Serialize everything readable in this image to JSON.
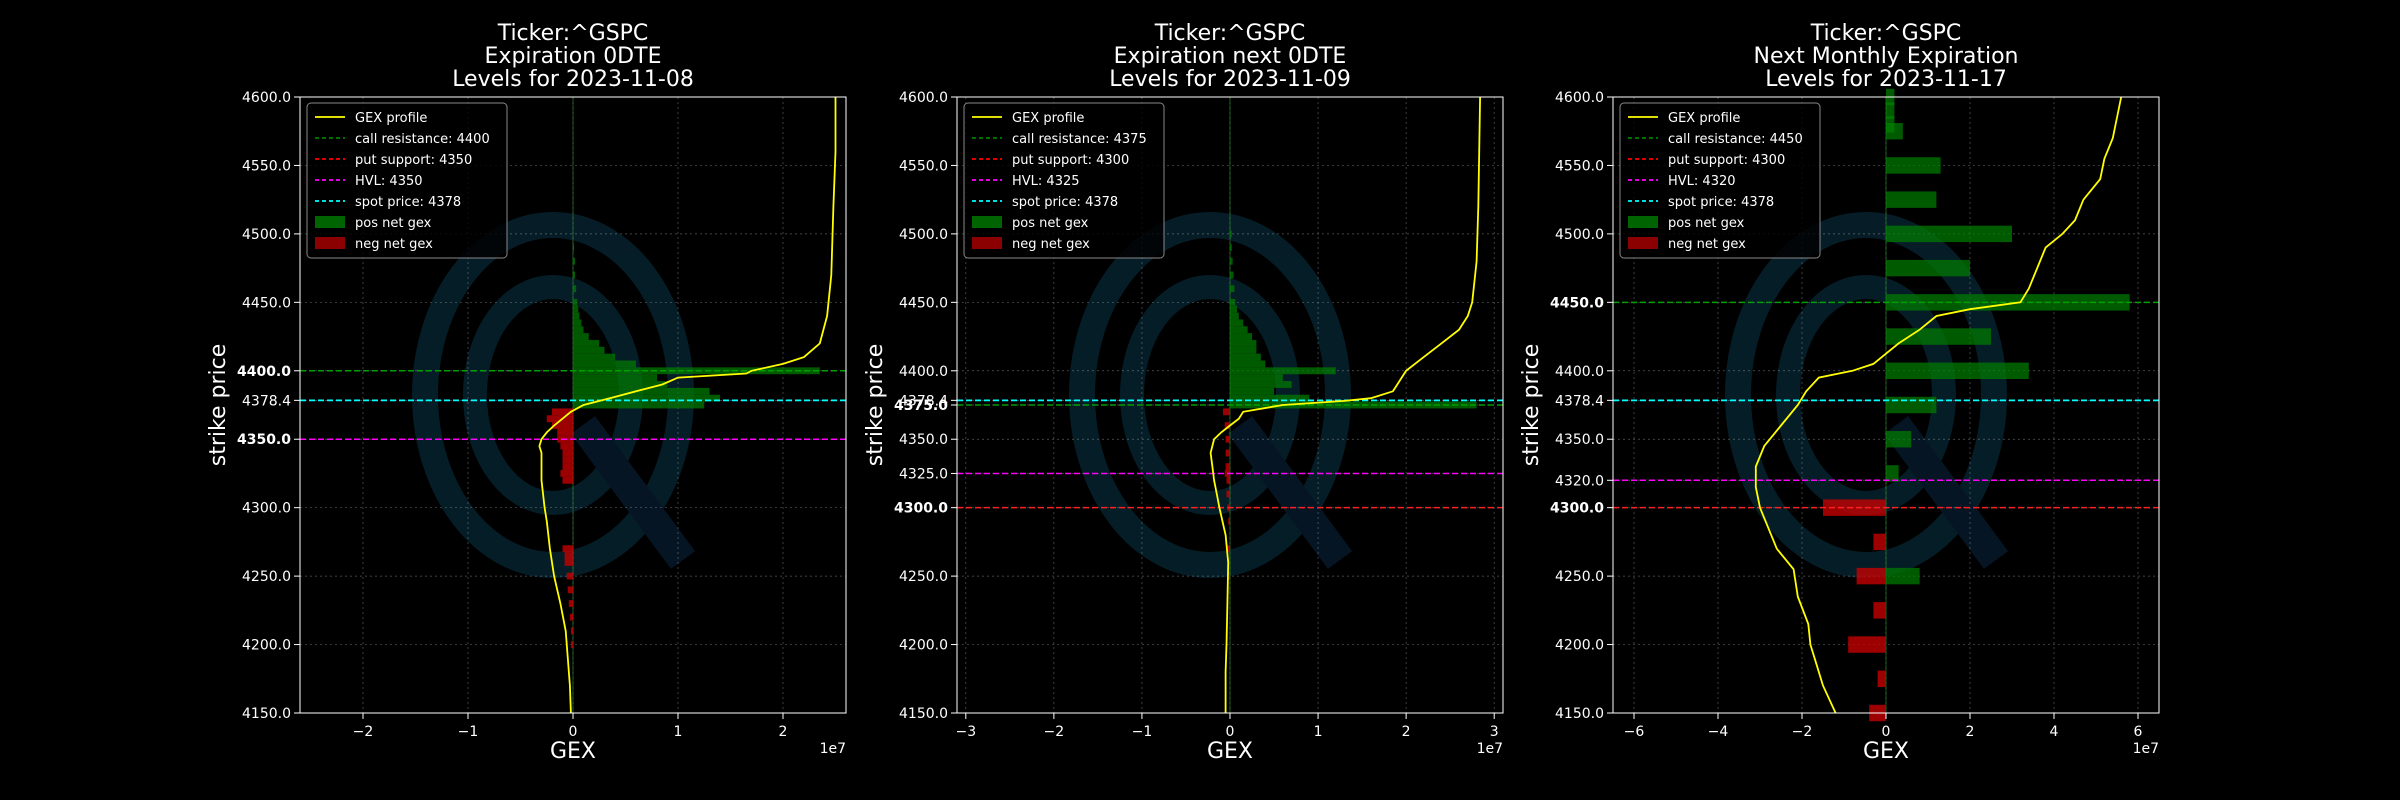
{
  "chart_data": [
    {
      "type": "bar",
      "title": [
        "Ticker:^GSPC",
        "Expiration 0DTE",
        "Levels for 2023-11-08"
      ],
      "xlabel": "GEX",
      "ylabel": "strike price",
      "x_exponent_label": "1e7",
      "xlim": [
        -2.6,
        2.6
      ],
      "ylim": [
        4150,
        4600
      ],
      "xticks": [
        -2,
        -1,
        0,
        1,
        2
      ],
      "yticks": [
        4150.0,
        4200.0,
        4250.0,
        4300.0,
        4350.0,
        4378.4,
        4400.0,
        4450.0,
        4500.0,
        4550.0,
        4600.0
      ],
      "ytick_labels": [
        "4150.0",
        "4200.0",
        "4250.0",
        "4300.0",
        "4350.0",
        "4378.4",
        "4400.0",
        "4450.0",
        "4500.0",
        "4550.0",
        "4600.0"
      ],
      "bold_yticks": [
        "4350.0",
        "4400.0"
      ],
      "grid": true,
      "legend_position": "top-left",
      "legend": [
        {
          "label": "GEX profile",
          "kind": "solid",
          "color": "#ffff00"
        },
        {
          "label": "call resistance: 4400",
          "kind": "dashed",
          "color": "#008000"
        },
        {
          "label": "put support: 4350",
          "kind": "dashed",
          "color": "#ff0000"
        },
        {
          "label": "HVL: 4350",
          "kind": "dashed",
          "color": "#ff00ff"
        },
        {
          "label": "spot price: 4378",
          "kind": "dashed",
          "color": "#00ffff"
        },
        {
          "label": "pos net gex",
          "kind": "patch",
          "color": "#006400"
        },
        {
          "label": "neg net gex",
          "kind": "patch",
          "color": "#8b0000"
        }
      ],
      "levels": {
        "call_resistance": 4400,
        "put_support": 4350,
        "hvl": 4350,
        "spot": 4378.4
      },
      "bar_height": 5,
      "pos_bars": [
        [
          4375,
          1.25
        ],
        [
          4380,
          1.4
        ],
        [
          4385,
          1.3
        ],
        [
          4390,
          0.9
        ],
        [
          4395,
          0.8
        ],
        [
          4400,
          2.35
        ],
        [
          4405,
          0.6
        ],
        [
          4410,
          0.4
        ],
        [
          4415,
          0.3
        ],
        [
          4420,
          0.25
        ],
        [
          4425,
          0.15
        ],
        [
          4430,
          0.1
        ],
        [
          4435,
          0.08
        ],
        [
          4440,
          0.06
        ],
        [
          4445,
          0.05
        ],
        [
          4450,
          0.04
        ],
        [
          4460,
          0.03
        ],
        [
          4470,
          0.02
        ],
        [
          4480,
          0.02
        ],
        [
          4490,
          0.01
        ]
      ],
      "neg_bars": [
        [
          4370,
          -0.2
        ],
        [
          4365,
          -0.25
        ],
        [
          4360,
          -0.2
        ],
        [
          4355,
          -0.15
        ],
        [
          4350,
          -0.15
        ],
        [
          4345,
          -0.12
        ],
        [
          4340,
          -0.1
        ],
        [
          4335,
          -0.1
        ],
        [
          4330,
          -0.1
        ],
        [
          4325,
          -0.12
        ],
        [
          4320,
          -0.1
        ],
        [
          4270,
          -0.1
        ],
        [
          4265,
          -0.08
        ],
        [
          4260,
          -0.08
        ],
        [
          4250,
          -0.06
        ],
        [
          4240,
          -0.05
        ],
        [
          4230,
          -0.04
        ],
        [
          4220,
          -0.03
        ],
        [
          4210,
          -0.02
        ],
        [
          4200,
          -0.02
        ]
      ],
      "profile": [
        [
          4150,
          -0.02
        ],
        [
          4170,
          -0.03
        ],
        [
          4190,
          -0.05
        ],
        [
          4210,
          -0.07
        ],
        [
          4230,
          -0.12
        ],
        [
          4250,
          -0.18
        ],
        [
          4270,
          -0.22
        ],
        [
          4290,
          -0.25
        ],
        [
          4300,
          -0.27
        ],
        [
          4320,
          -0.3
        ],
        [
          4340,
          -0.3
        ],
        [
          4345,
          -0.32
        ],
        [
          4350,
          -0.3
        ],
        [
          4355,
          -0.25
        ],
        [
          4360,
          -0.18
        ],
        [
          4365,
          -0.1
        ],
        [
          4370,
          -0.02
        ],
        [
          4375,
          0.1
        ],
        [
          4380,
          0.35
        ],
        [
          4385,
          0.6
        ],
        [
          4390,
          0.85
        ],
        [
          4395,
          1.0
        ],
        [
          4398,
          1.65
        ],
        [
          4400,
          1.7
        ],
        [
          4405,
          2.0
        ],
        [
          4410,
          2.2
        ],
        [
          4420,
          2.35
        ],
        [
          4440,
          2.42
        ],
        [
          4470,
          2.46
        ],
        [
          4520,
          2.48
        ],
        [
          4560,
          2.5
        ],
        [
          4600,
          2.5
        ]
      ]
    },
    {
      "type": "bar",
      "title": [
        "Ticker:^GSPC",
        "Expiration next 0DTE",
        "Levels for 2023-11-09"
      ],
      "xlabel": "GEX",
      "ylabel": "strike price",
      "x_exponent_label": "1e7",
      "xlim": [
        -3.1,
        3.1
      ],
      "ylim": [
        4150,
        4600
      ],
      "xticks": [
        -3,
        -2,
        -1,
        0,
        1,
        2,
        3
      ],
      "yticks": [
        4150.0,
        4200.0,
        4250.0,
        4300.0,
        4325.0,
        4350.0,
        4375.0,
        4378.4,
        4400.0,
        4450.0,
        4500.0,
        4550.0,
        4600.0
      ],
      "ytick_labels": [
        "4150.0",
        "4200.0",
        "4250.0",
        "4300.0",
        "4325.0",
        "4350.0",
        "4375.0",
        "4378.4",
        "4400.0",
        "4450.0",
        "4500.0",
        "4550.0",
        "4600.0"
      ],
      "bold_yticks": [
        "4300.0",
        "4375.0"
      ],
      "grid": true,
      "legend_position": "top-left",
      "legend": [
        {
          "label": "GEX profile",
          "kind": "solid",
          "color": "#ffff00"
        },
        {
          "label": "call resistance: 4375",
          "kind": "dashed",
          "color": "#008000"
        },
        {
          "label": "put support: 4300",
          "kind": "dashed",
          "color": "#ff0000"
        },
        {
          "label": "HVL: 4325",
          "kind": "dashed",
          "color": "#ff00ff"
        },
        {
          "label": "spot price: 4378",
          "kind": "dashed",
          "color": "#00ffff"
        },
        {
          "label": "pos net gex",
          "kind": "patch",
          "color": "#006400"
        },
        {
          "label": "neg net gex",
          "kind": "patch",
          "color": "#8b0000"
        }
      ],
      "levels": {
        "call_resistance": 4375,
        "put_support": 4300,
        "hvl": 4325,
        "spot": 4378.4
      },
      "bar_height": 5,
      "pos_bars": [
        [
          4375,
          2.8
        ],
        [
          4380,
          0.9
        ],
        [
          4385,
          0.5
        ],
        [
          4390,
          0.7
        ],
        [
          4395,
          0.6
        ],
        [
          4400,
          1.2
        ],
        [
          4405,
          0.4
        ],
        [
          4410,
          0.35
        ],
        [
          4415,
          0.3
        ],
        [
          4420,
          0.3
        ],
        [
          4425,
          0.25
        ],
        [
          4430,
          0.2
        ],
        [
          4435,
          0.15
        ],
        [
          4440,
          0.1
        ],
        [
          4445,
          0.08
        ],
        [
          4450,
          0.06
        ],
        [
          4460,
          0.05
        ],
        [
          4470,
          0.04
        ],
        [
          4480,
          0.03
        ],
        [
          4490,
          0.02
        ],
        [
          4500,
          0.02
        ]
      ],
      "neg_bars": [
        [
          4370,
          -0.08
        ],
        [
          4360,
          -0.06
        ],
        [
          4350,
          -0.05
        ],
        [
          4340,
          -0.05
        ],
        [
          4330,
          -0.05
        ],
        [
          4325,
          -0.06
        ],
        [
          4320,
          -0.04
        ],
        [
          4310,
          -0.04
        ],
        [
          4300,
          -0.03
        ],
        [
          4290,
          -0.02
        ],
        [
          4270,
          -0.03
        ],
        [
          4260,
          -0.02
        ],
        [
          4250,
          -0.02
        ],
        [
          4240,
          -0.01
        ]
      ],
      "profile": [
        [
          4150,
          -0.05
        ],
        [
          4180,
          -0.05
        ],
        [
          4200,
          -0.04
        ],
        [
          4230,
          -0.03
        ],
        [
          4260,
          -0.02
        ],
        [
          4280,
          -0.05
        ],
        [
          4300,
          -0.12
        ],
        [
          4310,
          -0.15
        ],
        [
          4320,
          -0.18
        ],
        [
          4330,
          -0.2
        ],
        [
          4340,
          -0.22
        ],
        [
          4350,
          -0.18
        ],
        [
          4355,
          -0.1
        ],
        [
          4360,
          0.0
        ],
        [
          4365,
          0.1
        ],
        [
          4370,
          0.15
        ],
        [
          4375,
          0.6
        ],
        [
          4378,
          1.3
        ],
        [
          4380,
          1.6
        ],
        [
          4385,
          1.85
        ],
        [
          4390,
          1.9
        ],
        [
          4395,
          1.95
        ],
        [
          4400,
          2.0
        ],
        [
          4410,
          2.2
        ],
        [
          4420,
          2.4
        ],
        [
          4430,
          2.6
        ],
        [
          4440,
          2.7
        ],
        [
          4450,
          2.75
        ],
        [
          4480,
          2.8
        ],
        [
          4520,
          2.82
        ],
        [
          4560,
          2.83
        ],
        [
          4600,
          2.84
        ]
      ]
    },
    {
      "type": "bar",
      "title": [
        "Ticker:^GSPC",
        "Next Monthly Expiration",
        "Levels for 2023-11-17"
      ],
      "xlabel": "GEX",
      "ylabel": "strike price",
      "x_exponent_label": "1e7",
      "xlim": [
        -6.5,
        6.5
      ],
      "ylim": [
        4150,
        4600
      ],
      "xticks": [
        -6,
        -4,
        -2,
        0,
        2,
        4,
        6
      ],
      "yticks": [
        4150.0,
        4200.0,
        4250.0,
        4300.0,
        4320.0,
        4350.0,
        4378.4,
        4400.0,
        4450.0,
        4500.0,
        4550.0,
        4600.0
      ],
      "ytick_labels": [
        "4150.0",
        "4200.0",
        "4250.0",
        "4300.0",
        "4320.0",
        "4350.0",
        "4378.4",
        "4400.0",
        "4450.0",
        "4500.0",
        "4550.0",
        "4600.0"
      ],
      "bold_yticks": [
        "4300.0",
        "4450.0"
      ],
      "grid": true,
      "legend_position": "top-left",
      "legend": [
        {
          "label": "GEX profile",
          "kind": "solid",
          "color": "#ffff00"
        },
        {
          "label": "call resistance: 4450",
          "kind": "dashed",
          "color": "#008000"
        },
        {
          "label": "put support: 4300",
          "kind": "dashed",
          "color": "#ff0000"
        },
        {
          "label": "HVL: 4320",
          "kind": "dashed",
          "color": "#ff00ff"
        },
        {
          "label": "spot price: 4378",
          "kind": "dashed",
          "color": "#00ffff"
        },
        {
          "label": "pos net gex",
          "kind": "patch",
          "color": "#006400"
        },
        {
          "label": "neg net gex",
          "kind": "patch",
          "color": "#8b0000"
        }
      ],
      "levels": {
        "call_resistance": 4450,
        "put_support": 4300,
        "hvl": 4320,
        "spot": 4378.4
      },
      "bar_height": 12,
      "pos_bars": [
        [
          4600,
          0.2
        ],
        [
          4590,
          0.2
        ],
        [
          4580,
          0.2
        ],
        [
          4575,
          0.4
        ],
        [
          4550,
          1.3
        ],
        [
          4525,
          1.2
        ],
        [
          4500,
          3.0
        ],
        [
          4475,
          2.0
        ],
        [
          4450,
          5.8
        ],
        [
          4425,
          2.5
        ],
        [
          4400,
          3.4
        ],
        [
          4375,
          1.2
        ],
        [
          4350,
          0.6
        ],
        [
          4325,
          0.3
        ],
        [
          4250,
          0.8
        ]
      ],
      "neg_bars": [
        [
          4300,
          -1.5
        ],
        [
          4275,
          -0.3
        ],
        [
          4250,
          -0.7
        ],
        [
          4225,
          -0.3
        ],
        [
          4200,
          -0.9
        ],
        [
          4175,
          -0.2
        ],
        [
          4150,
          -0.4
        ]
      ],
      "profile": [
        [
          4150,
          -1.2
        ],
        [
          4170,
          -1.5
        ],
        [
          4190,
          -1.7
        ],
        [
          4200,
          -1.8
        ],
        [
          4215,
          -1.85
        ],
        [
          4235,
          -2.1
        ],
        [
          4255,
          -2.2
        ],
        [
          4270,
          -2.6
        ],
        [
          4285,
          -2.8
        ],
        [
          4300,
          -3.0
        ],
        [
          4315,
          -3.1
        ],
        [
          4330,
          -3.1
        ],
        [
          4345,
          -2.9
        ],
        [
          4360,
          -2.5
        ],
        [
          4375,
          -2.1
        ],
        [
          4385,
          -1.9
        ],
        [
          4395,
          -1.6
        ],
        [
          4400,
          -0.8
        ],
        [
          4405,
          -0.3
        ],
        [
          4410,
          -0.1
        ],
        [
          4420,
          0.3
        ],
        [
          4430,
          0.8
        ],
        [
          4440,
          1.2
        ],
        [
          4445,
          2.0
        ],
        [
          4450,
          3.2
        ],
        [
          4460,
          3.4
        ],
        [
          4475,
          3.6
        ],
        [
          4490,
          3.8
        ],
        [
          4500,
          4.2
        ],
        [
          4510,
          4.5
        ],
        [
          4525,
          4.7
        ],
        [
          4540,
          5.1
        ],
        [
          4555,
          5.2
        ],
        [
          4570,
          5.4
        ],
        [
          4585,
          5.5
        ],
        [
          4600,
          5.6
        ]
      ]
    }
  ]
}
